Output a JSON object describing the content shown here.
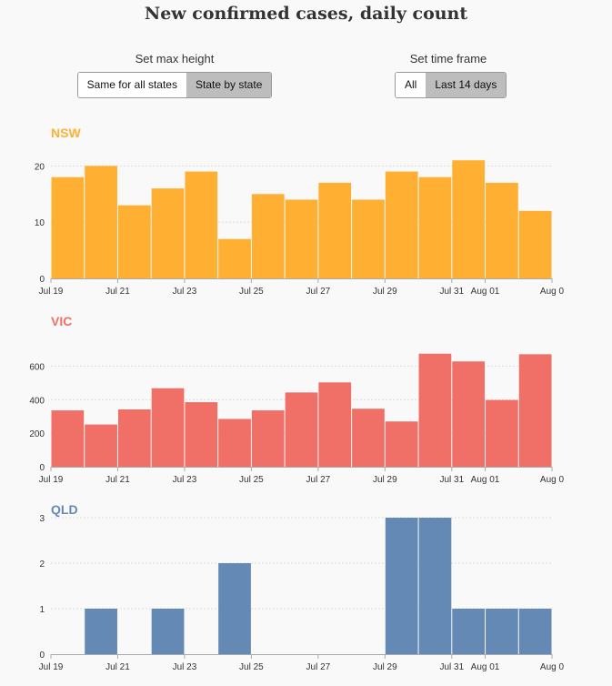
{
  "title": "New confirmed cases, daily count",
  "controls": {
    "max_height": {
      "label": "Set max height",
      "options": [
        "Same for all states",
        "State by state"
      ],
      "selected": "State by state"
    },
    "time_frame": {
      "label": "Set time frame",
      "options": [
        "All",
        "Last 14 days"
      ],
      "selected": "Last 14 days"
    }
  },
  "chart_data": [
    {
      "type": "bar",
      "title": "NSW",
      "color": "#ffb033",
      "categories": [
        "Jul 19",
        "Jul 20",
        "Jul 21",
        "Jul 22",
        "Jul 23",
        "Jul 24",
        "Jul 25",
        "Jul 26",
        "Jul 27",
        "Jul 28",
        "Jul 29",
        "Jul 30",
        "Jul 31",
        "Aug 01",
        "Aug 02"
      ],
      "values": [
        18,
        20,
        13,
        16,
        19,
        7,
        15,
        14,
        17,
        14,
        19,
        18,
        21,
        17,
        12
      ],
      "x_tick_labels": [
        "Jul 19",
        "Jul 21",
        "Jul 23",
        "Jul 25",
        "Jul 27",
        "Jul 29",
        "Jul 31",
        "Aug 01",
        "Aug 0"
      ],
      "x_tick_positions": [
        0,
        2,
        4,
        6,
        8,
        10,
        12,
        13,
        15
      ],
      "y_ticks": [
        0,
        10,
        20
      ],
      "ylim": [
        0,
        22
      ]
    },
    {
      "type": "bar",
      "title": "VIC",
      "color": "#f07068",
      "categories": [
        "Jul 19",
        "Jul 20",
        "Jul 21",
        "Jul 22",
        "Jul 23",
        "Jul 24",
        "Jul 25",
        "Jul 26",
        "Jul 27",
        "Jul 28",
        "Jul 29",
        "Jul 30",
        "Jul 31",
        "Aug 01",
        "Aug 02"
      ],
      "values": [
        336,
        252,
        342,
        468,
        385,
        285,
        336,
        443,
        503,
        346,
        270,
        674,
        628,
        398,
        671
      ],
      "x_tick_labels": [
        "Jul 19",
        "Jul 21",
        "Jul 23",
        "Jul 25",
        "Jul 27",
        "Jul 29",
        "Jul 31",
        "Aug 01",
        "Aug 0"
      ],
      "x_tick_positions": [
        0,
        2,
        4,
        6,
        8,
        10,
        12,
        13,
        15
      ],
      "y_ticks": [
        0,
        200,
        400,
        600
      ],
      "ylim": [
        0,
        700
      ]
    },
    {
      "type": "bar",
      "title": "QLD",
      "color": "#6589b5",
      "categories": [
        "Jul 19",
        "Jul 20",
        "Jul 21",
        "Jul 22",
        "Jul 23",
        "Jul 24",
        "Jul 25",
        "Jul 26",
        "Jul 27",
        "Jul 28",
        "Jul 29",
        "Jul 30",
        "Jul 31",
        "Aug 01",
        "Aug 02"
      ],
      "values": [
        0,
        1,
        0,
        1,
        0,
        2,
        0,
        0,
        0,
        0,
        3,
        3,
        1,
        1,
        1
      ],
      "x_tick_labels": [
        "Jul 19",
        "Jul 21",
        "Jul 23",
        "Jul 25",
        "Jul 27",
        "Jul 29",
        "Jul 31",
        "Aug 01",
        "Aug 0"
      ],
      "x_tick_positions": [
        0,
        2,
        4,
        6,
        8,
        10,
        12,
        13,
        15
      ],
      "y_ticks": [
        0,
        1,
        2,
        3
      ],
      "ylim": [
        0,
        3
      ]
    }
  ]
}
